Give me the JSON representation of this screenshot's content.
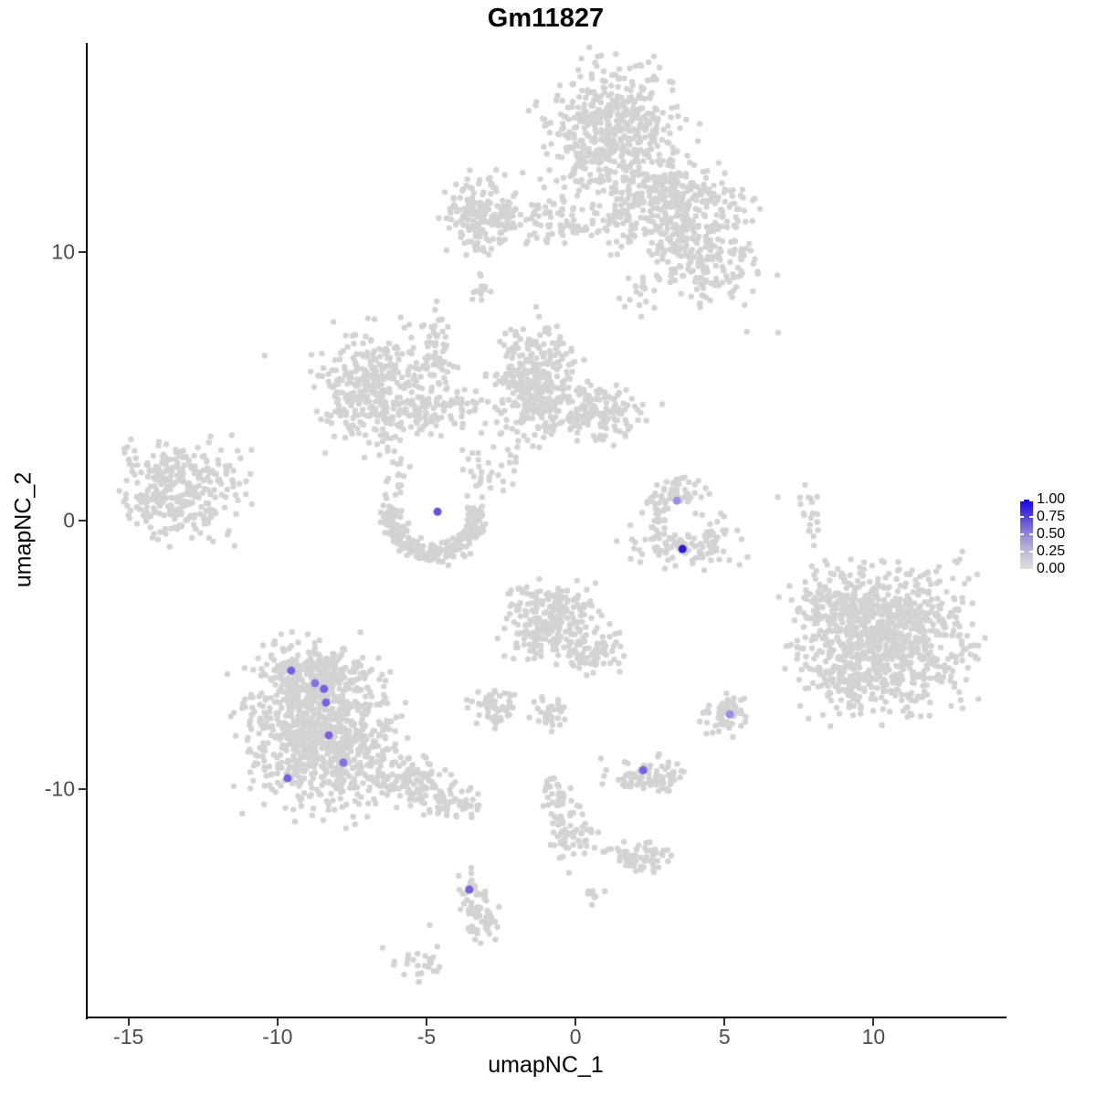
{
  "title": "Gm11827",
  "axes": {
    "x": {
      "label": "umapNC_1",
      "ticks": [
        -15,
        -10,
        -5,
        0,
        5,
        10
      ]
    },
    "y": {
      "label": "umapNC_2",
      "ticks": [
        -10,
        0,
        10
      ]
    }
  },
  "legend": {
    "labels": [
      "1.00",
      "0.75",
      "0.50",
      "0.25",
      "0.00"
    ],
    "values": [
      1.0,
      0.75,
      0.5,
      0.25,
      0.0
    ],
    "high_color": "#1603ee",
    "mid_color": "#9c92d8",
    "low_color": "#dedede"
  },
  "colors": {
    "background_point": "#d3d3d3",
    "axis": "#000000",
    "tick_text": "#4d4d4d"
  },
  "chart_data": {
    "type": "scatter",
    "title": "Gm11827",
    "xlabel": "umapNC_1",
    "ylabel": "umapNC_2",
    "xlim": [
      -16.4,
      14.4
    ],
    "ylim": [
      -18.5,
      17.8
    ],
    "x_ticks": [
      -15,
      -10,
      -5,
      0,
      5,
      10
    ],
    "y_ticks": [
      -10,
      0,
      10
    ],
    "grid": false,
    "legend_position": "right",
    "seed": 1234567,
    "point_radius_px": 3.2,
    "highlight_radius_px": 4.5,
    "background_clusters": [
      {
        "id": "top-main",
        "cx": 1.29,
        "cy": 14.29,
        "sx": 1.1,
        "sy": 1.3,
        "n": 520
      },
      {
        "id": "top-arm",
        "cx": 2.76,
        "cy": 12.07,
        "sx": 0.75,
        "sy": 0.65,
        "n": 150
      },
      {
        "id": "top-right",
        "cx": 4.29,
        "cy": 11.73,
        "sx": 0.85,
        "sy": 0.72,
        "n": 120
      },
      {
        "id": "top-right-lower",
        "cx": 4.45,
        "cy": 9.52,
        "sx": 0.9,
        "sy": 0.65,
        "n": 150
      },
      {
        "id": "top-connector",
        "cx": 3.37,
        "cy": 10.54,
        "sx": 0.6,
        "sy": 0.5,
        "n": 60
      },
      {
        "id": "top-below",
        "cx": 1.53,
        "cy": 11.05,
        "sx": 0.45,
        "sy": 0.5,
        "n": 40
      },
      {
        "id": "top-below-trail",
        "cx": 1.99,
        "cy": 8.5,
        "sx": 0.3,
        "sy": 0.6,
        "n": 15
      },
      {
        "id": "upperleft-dense",
        "cx": -3.22,
        "cy": 11.39,
        "sx": 0.55,
        "sy": 0.72,
        "n": 160
      },
      {
        "id": "upperleft-trail",
        "cx": -1.69,
        "cy": 11.22,
        "sx": 0.9,
        "sy": 0.4,
        "n": 80
      },
      {
        "id": "upperleft-trail2",
        "cx": -0.31,
        "cy": 10.99,
        "sx": 0.45,
        "sy": 0.3,
        "n": 25
      },
      {
        "id": "tiny-diagonal",
        "cx": -3.16,
        "cy": 8.67,
        "sx": 0.2,
        "sy": 0.3,
        "n": 12
      },
      {
        "id": "central-left",
        "cx": -6.75,
        "cy": 4.93,
        "sx": 0.9,
        "sy": 1.0,
        "n": 360
      },
      {
        "id": "central-left-arm",
        "cx": -4.29,
        "cy": 4.08,
        "sx": 0.75,
        "sy": 0.4,
        "n": 80
      },
      {
        "id": "central-neck",
        "cx": -4.6,
        "cy": 6.29,
        "sx": 0.25,
        "sy": 0.95,
        "n": 60
      },
      {
        "id": "central-right",
        "cx": -1.38,
        "cy": 5.27,
        "sx": 0.65,
        "sy": 1.0,
        "n": 320
      },
      {
        "id": "central-right-ext",
        "cx": 0.77,
        "cy": 4.08,
        "sx": 0.85,
        "sy": 0.52,
        "n": 150
      },
      {
        "id": "central-gap-trail",
        "cx": -2.15,
        "cy": 2.21,
        "sx": 0.25,
        "sy": 0.6,
        "n": 15
      },
      {
        "type": "arc",
        "id": "crescent",
        "cx": -4.75,
        "cy": 0.27,
        "r": 1.45,
        "a0": 170,
        "a1": 370,
        "spread": 0.18,
        "n": 260
      },
      {
        "id": "crescent-left-top",
        "cx": -5.98,
        "cy": 1.7,
        "sx": 0.3,
        "sy": 0.5,
        "n": 20
      },
      {
        "id": "crescent-right-top",
        "cx": -3.22,
        "cy": 1.87,
        "sx": 0.28,
        "sy": 0.55,
        "n": 25
      },
      {
        "id": "left-blob",
        "cx": -13.34,
        "cy": 1.19,
        "sx": 0.95,
        "sy": 0.88,
        "n": 320
      },
      {
        "id": "hook-top",
        "cx": 3.62,
        "cy": 1.09,
        "sx": 0.37,
        "sy": 0.27,
        "n": 40
      },
      {
        "id": "hook-mid",
        "cx": 2.7,
        "cy": 0.27,
        "sx": 0.3,
        "sy": 0.4,
        "n": 30
      },
      {
        "id": "hook-bottom",
        "cx": 3.62,
        "cy": -1.02,
        "sx": 0.85,
        "sy": 0.37,
        "n": 90
      },
      {
        "id": "hook-right",
        "cx": 4.54,
        "cy": -0.27,
        "sx": 0.25,
        "sy": 0.34,
        "n": 20
      },
      {
        "id": "tiny-trail-right",
        "cx": 7.91,
        "cy": 0.07,
        "sx": 0.14,
        "sy": 0.55,
        "n": 20
      },
      {
        "id": "right-big",
        "cx": 10.37,
        "cy": -4.42,
        "sx": 1.35,
        "sy": 1.28,
        "n": 950
      },
      {
        "id": "right-big-topleft",
        "cx": 8.44,
        "cy": -3.06,
        "sx": 0.5,
        "sy": 0.6,
        "n": 60
      },
      {
        "id": "right-big-bottomleft",
        "cx": 8.9,
        "cy": -5.95,
        "sx": 0.5,
        "sy": 0.4,
        "n": 40
      },
      {
        "id": "center-mid",
        "cx": -0.77,
        "cy": -3.74,
        "sx": 0.75,
        "sy": 0.68,
        "n": 260
      },
      {
        "id": "center-mid-ext",
        "cx": 0.61,
        "cy": -4.93,
        "sx": 0.45,
        "sy": 0.37,
        "n": 60
      },
      {
        "id": "small-left",
        "cx": -2.61,
        "cy": -6.97,
        "sx": 0.42,
        "sy": 0.37,
        "n": 60
      },
      {
        "id": "small-mid",
        "cx": -0.92,
        "cy": -7.14,
        "sx": 0.3,
        "sy": 0.3,
        "n": 35
      },
      {
        "id": "lowerleft-main",
        "cx": -8.59,
        "cy": -7.82,
        "sx": 1.15,
        "sy": 1.32,
        "n": 850
      },
      {
        "id": "lowerleft-top",
        "cx": -8.9,
        "cy": -5.71,
        "sx": 0.88,
        "sy": 0.55,
        "n": 200
      },
      {
        "id": "lowerleft-tail1",
        "cx": -5.83,
        "cy": -9.69,
        "sx": 0.78,
        "sy": 0.45,
        "n": 120
      },
      {
        "id": "lowerleft-tail2",
        "cx": -4.29,
        "cy": -10.48,
        "sx": 0.55,
        "sy": 0.35,
        "n": 60
      },
      {
        "id": "small-right1",
        "cx": 4.97,
        "cy": -7.41,
        "sx": 0.36,
        "sy": 0.33,
        "n": 50
      },
      {
        "id": "small-right1-lobe",
        "cx": 5.21,
        "cy": -6.87,
        "sx": 0.2,
        "sy": 0.25,
        "n": 15
      },
      {
        "id": "small-right2",
        "cx": 2.45,
        "cy": -9.46,
        "sx": 0.6,
        "sy": 0.37,
        "n": 80
      },
      {
        "id": "squiggle-top",
        "cx": -0.67,
        "cy": -10.14,
        "sx": 0.18,
        "sy": 0.34,
        "n": 25
      },
      {
        "id": "squiggle-bottom",
        "cx": -0.25,
        "cy": -11.56,
        "sx": 0.25,
        "sy": 0.6,
        "n": 50
      },
      {
        "id": "dots-row1",
        "cx": 0.46,
        "cy": -11.77,
        "sx": 0.3,
        "sy": 0.17,
        "n": 12
      },
      {
        "id": "dots-row2",
        "cx": 1.41,
        "cy": -12.18,
        "sx": 0.25,
        "sy": 0.17,
        "n": 10
      },
      {
        "id": "small-bottom",
        "cx": 2.3,
        "cy": -12.65,
        "sx": 0.45,
        "sy": 0.27,
        "n": 50
      },
      {
        "id": "tiny-bottom",
        "cx": 0.61,
        "cy": -14.01,
        "sx": 0.18,
        "sy": 0.17,
        "n": 8
      },
      {
        "id": "bottom-squiggle-top",
        "cx": -3.44,
        "cy": -13.78,
        "sx": 0.24,
        "sy": 0.4,
        "n": 30
      },
      {
        "id": "bottom-squiggle-bottom",
        "cx": -3.13,
        "cy": -14.9,
        "sx": 0.3,
        "sy": 0.48,
        "n": 45
      },
      {
        "id": "bottom-left-trail",
        "cx": -5.15,
        "cy": -16.53,
        "sx": 0.45,
        "sy": 0.33,
        "n": 25
      },
      {
        "id": "single-1",
        "cx": -10.43,
        "cy": 6.12,
        "sx": 0.02,
        "sy": 0.02,
        "n": 1
      },
      {
        "id": "single-2",
        "cx": -5.61,
        "cy": 6.29,
        "sx": 0.02,
        "sy": 0.02,
        "n": 1
      },
      {
        "id": "single-3",
        "cx": 4.2,
        "cy": 7.99,
        "sx": 0.02,
        "sy": 0.02,
        "n": 1
      },
      {
        "id": "single-4",
        "cx": 5.74,
        "cy": 7.04,
        "sx": 0.02,
        "sy": 0.02,
        "n": 1
      },
      {
        "id": "single-5",
        "cx": 6.75,
        "cy": 6.97,
        "sx": 0.02,
        "sy": 0.02,
        "n": 1
      },
      {
        "id": "single-6",
        "cx": -4.91,
        "cy": -15.03,
        "sx": 0.02,
        "sy": 0.02,
        "n": 1
      },
      {
        "id": "single-7",
        "cx": -6.44,
        "cy": -15.92,
        "sx": 0.02,
        "sy": 0.02,
        "n": 1
      },
      {
        "id": "single-8",
        "cx": 6.75,
        "cy": 0.85,
        "sx": 0.02,
        "sy": 0.02,
        "n": 1
      }
    ],
    "highlighted_points": [
      {
        "x": -4.63,
        "y": 0.34,
        "value": 0.6,
        "color": "#6a52e0"
      },
      {
        "x": 3.4,
        "y": 0.75,
        "value": 0.4,
        "color": "#9b8be8"
      },
      {
        "x": 3.59,
        "y": -1.05,
        "value": 0.95,
        "color": "#2a17d8"
      },
      {
        "x": -9.54,
        "y": -5.58,
        "value": 0.55,
        "color": "#7a5ee8"
      },
      {
        "x": -8.74,
        "y": -6.05,
        "value": 0.5,
        "color": "#8471e6"
      },
      {
        "x": -8.44,
        "y": -6.26,
        "value": 0.55,
        "color": "#7a5ee8"
      },
      {
        "x": -8.37,
        "y": -6.77,
        "value": 0.55,
        "color": "#7a5ee8"
      },
      {
        "x": -8.28,
        "y": -7.99,
        "value": 0.55,
        "color": "#7a5ee8"
      },
      {
        "x": -7.79,
        "y": -9.01,
        "value": 0.5,
        "color": "#8471e6"
      },
      {
        "x": -9.66,
        "y": -9.59,
        "value": 0.55,
        "color": "#7a5ee8"
      },
      {
        "x": 5.18,
        "y": -7.21,
        "value": 0.4,
        "color": "#9b8be8"
      },
      {
        "x": 2.27,
        "y": -9.29,
        "value": 0.55,
        "color": "#7a5ee8"
      },
      {
        "x": -3.56,
        "y": -13.74,
        "value": 0.55,
        "color": "#7a5ee8"
      }
    ]
  }
}
